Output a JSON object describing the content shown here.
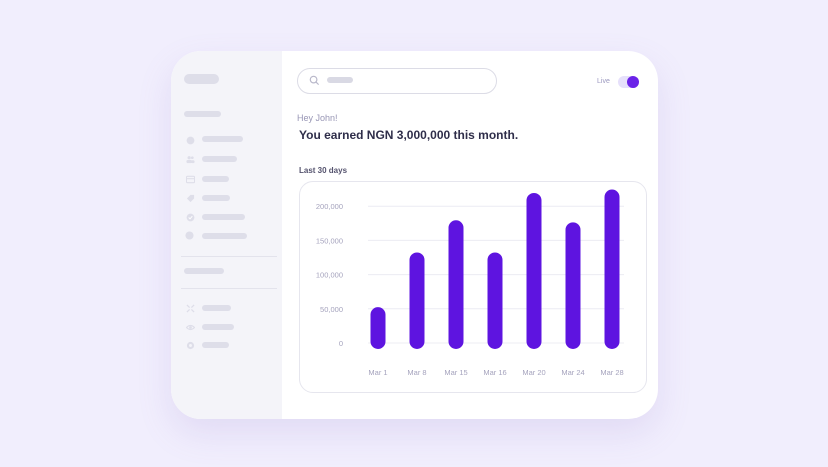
{
  "greeting": "Hey John!",
  "headline": "You earned NGN 3,000,000 this month.",
  "live_label": "Live",
  "period_label": "Last 30 days",
  "colors": {
    "accent": "#5e14e0",
    "background": "#f1eefd"
  },
  "icons": {
    "search": "search-icon",
    "sidebar": [
      "dollar-icon",
      "users-icon",
      "card-icon",
      "tag-icon",
      "check-icon",
      "circle-icon"
    ],
    "sidebar_bottom": [
      "expand-icon",
      "eye-icon",
      "gear-icon"
    ]
  },
  "chart_data": {
    "type": "bar",
    "categories": [
      "Mar 1",
      "Mar 8",
      "Mar 15",
      "Mar 16",
      "Mar 20",
      "Mar 24",
      "Mar 28"
    ],
    "values": [
      48000,
      128000,
      175000,
      128000,
      215000,
      172000,
      220000
    ],
    "y_ticks": [
      "0",
      "50,000",
      "100,000",
      "150,000",
      "200,000"
    ],
    "ylim": [
      0,
      250000
    ],
    "grid": true
  }
}
